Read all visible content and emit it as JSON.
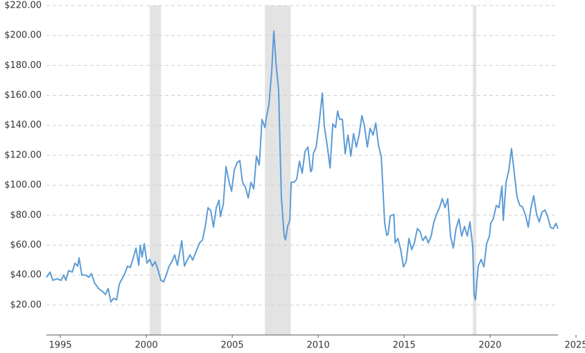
{
  "chart_data": {
    "type": "line",
    "color": "#5b9bd5",
    "grid": true,
    "shade_color": "#e3e3e3",
    "xlim": [
      1994.19,
      2023.95
    ],
    "xticks": [
      1995,
      2000,
      2005,
      2010,
      2015,
      2020,
      2025
    ],
    "ylim": [
      0,
      220
    ],
    "yticks": [
      {
        "value": 20,
        "label": "$20.00"
      },
      {
        "value": 40,
        "label": "$40.00"
      },
      {
        "value": 60,
        "label": "$60.00"
      },
      {
        "value": 80,
        "label": "$80.00"
      },
      {
        "value": 100,
        "label": "$100.00"
      },
      {
        "value": 120,
        "label": "$120.00"
      },
      {
        "value": 140,
        "label": "$140.00"
      },
      {
        "value": 160,
        "label": "$160.00"
      },
      {
        "value": 180,
        "label": "$180.00"
      },
      {
        "value": 200,
        "label": "$200.00"
      },
      {
        "value": 220,
        "label": "$220.00"
      }
    ],
    "shaded_ranges": [
      [
        2000.2,
        2000.85
      ],
      [
        2006.9,
        2008.4
      ],
      [
        2019.0,
        2019.2
      ]
    ],
    "x": [
      1994.19,
      1994.4,
      1994.56,
      1994.8,
      1995.04,
      1995.2,
      1995.32,
      1995.48,
      1995.69,
      1995.85,
      1996.01,
      1996.09,
      1996.25,
      1996.49,
      1996.65,
      1996.81,
      1996.98,
      1997.22,
      1997.46,
      1997.62,
      1997.78,
      1997.94,
      1998.1,
      1998.27,
      1998.43,
      1998.59,
      1998.75,
      1998.91,
      1999.07,
      1999.23,
      1999.4,
      1999.56,
      1999.64,
      1999.76,
      1999.88,
      2000.04,
      2000.2,
      2000.36,
      2000.52,
      2000.69,
      2000.85,
      2001.01,
      2001.17,
      2001.33,
      2001.49,
      2001.65,
      2001.81,
      2002.06,
      2002.22,
      2002.38,
      2002.54,
      2002.7,
      2002.94,
      2003.1,
      2003.27,
      2003.43,
      2003.59,
      2003.75,
      2003.91,
      2004.07,
      2004.23,
      2004.31,
      2004.48,
      2004.64,
      2004.8,
      2004.96,
      2005.12,
      2005.28,
      2005.44,
      2005.6,
      2005.77,
      2005.93,
      2006.09,
      2006.25,
      2006.41,
      2006.57,
      2006.73,
      2006.9,
      2006.98,
      2007.14,
      2007.3,
      2007.42,
      2007.54,
      2007.7,
      2007.78,
      2007.86,
      2008.02,
      2008.1,
      2008.23,
      2008.35,
      2008.43,
      2008.59,
      2008.75,
      2008.91,
      2009.07,
      2009.23,
      2009.4,
      2009.56,
      2009.64,
      2009.72,
      2009.88,
      2010.04,
      2010.24,
      2010.36,
      2010.52,
      2010.69,
      2010.85,
      2011.01,
      2011.13,
      2011.25,
      2011.41,
      2011.57,
      2011.73,
      2011.9,
      2012.06,
      2012.22,
      2012.38,
      2012.54,
      2012.7,
      2012.86,
      2013.02,
      2013.19,
      2013.35,
      2013.51,
      2013.67,
      2013.75,
      2013.87,
      2013.99,
      2014.07,
      2014.19,
      2014.4,
      2014.48,
      2014.64,
      2014.8,
      2014.96,
      2015.12,
      2015.28,
      2015.44,
      2015.6,
      2015.77,
      2015.93,
      2016.09,
      2016.25,
      2016.41,
      2016.57,
      2016.73,
      2016.9,
      2017.06,
      2017.22,
      2017.38,
      2017.54,
      2017.7,
      2017.86,
      2018.02,
      2018.19,
      2018.35,
      2018.51,
      2018.67,
      2018.83,
      2018.99,
      2019.07,
      2019.15,
      2019.31,
      2019.48,
      2019.64,
      2019.8,
      2019.96,
      2020.04,
      2020.2,
      2020.36,
      2020.52,
      2020.69,
      2020.77,
      2020.93,
      2021.09,
      2021.25,
      2021.41,
      2021.57,
      2021.73,
      2021.89,
      2022.06,
      2022.22,
      2022.38,
      2022.54,
      2022.7,
      2022.86,
      2023.02,
      2023.19,
      2023.35,
      2023.51,
      2023.67,
      2023.83,
      2023.95
    ],
    "values": [
      38.5,
      42,
      36.5,
      37.5,
      36.5,
      40,
      36.5,
      43,
      42,
      48,
      46,
      51.5,
      40,
      40,
      38.5,
      41,
      35,
      31,
      29,
      27,
      31,
      22,
      24.5,
      23.5,
      34,
      37.5,
      41,
      46,
      45,
      51,
      58,
      46.5,
      60,
      52,
      61,
      48,
      50.5,
      46,
      49,
      43,
      36.5,
      35.5,
      40.5,
      46,
      49,
      53.5,
      46.5,
      63,
      46,
      50,
      53.5,
      50,
      57,
      61.5,
      63.5,
      72.5,
      85,
      83,
      72,
      85,
      90,
      79,
      87.5,
      112.5,
      103,
      96,
      110,
      115,
      116.5,
      102,
      98.5,
      91.5,
      102,
      97.5,
      119.5,
      113.5,
      144,
      138.5,
      145,
      154,
      177,
      203,
      182,
      163.5,
      126.5,
      91.5,
      66,
      63.5,
      73,
      76.5,
      102,
      102,
      104,
      116,
      108,
      122.5,
      125.5,
      109,
      110.5,
      121,
      125.5,
      140,
      161.5,
      139,
      127,
      111.5,
      141,
      138.5,
      149.5,
      144,
      144,
      121,
      133.5,
      119.5,
      134.5,
      125.5,
      133.5,
      146.5,
      139,
      125.5,
      138,
      133.5,
      141.5,
      126.5,
      119,
      101,
      74.5,
      66.5,
      67.5,
      79.5,
      80.5,
      61.5,
      64.5,
      57,
      45.5,
      49,
      64.5,
      57,
      61.5,
      71,
      69,
      63,
      66,
      61.5,
      66,
      75.5,
      81,
      85,
      91,
      85,
      91,
      66,
      58,
      71,
      77.5,
      66,
      72.5,
      66,
      75.5,
      59,
      27,
      23.5,
      46,
      50.5,
      45.5,
      61,
      66,
      74.5,
      78,
      86.5,
      85,
      99.5,
      76.5,
      102,
      110,
      124.5,
      108,
      92,
      86.5,
      85.5,
      80,
      72,
      85,
      93,
      81,
      75.5,
      82,
      83.5,
      79,
      72,
      71,
      74.5,
      71
    ]
  }
}
